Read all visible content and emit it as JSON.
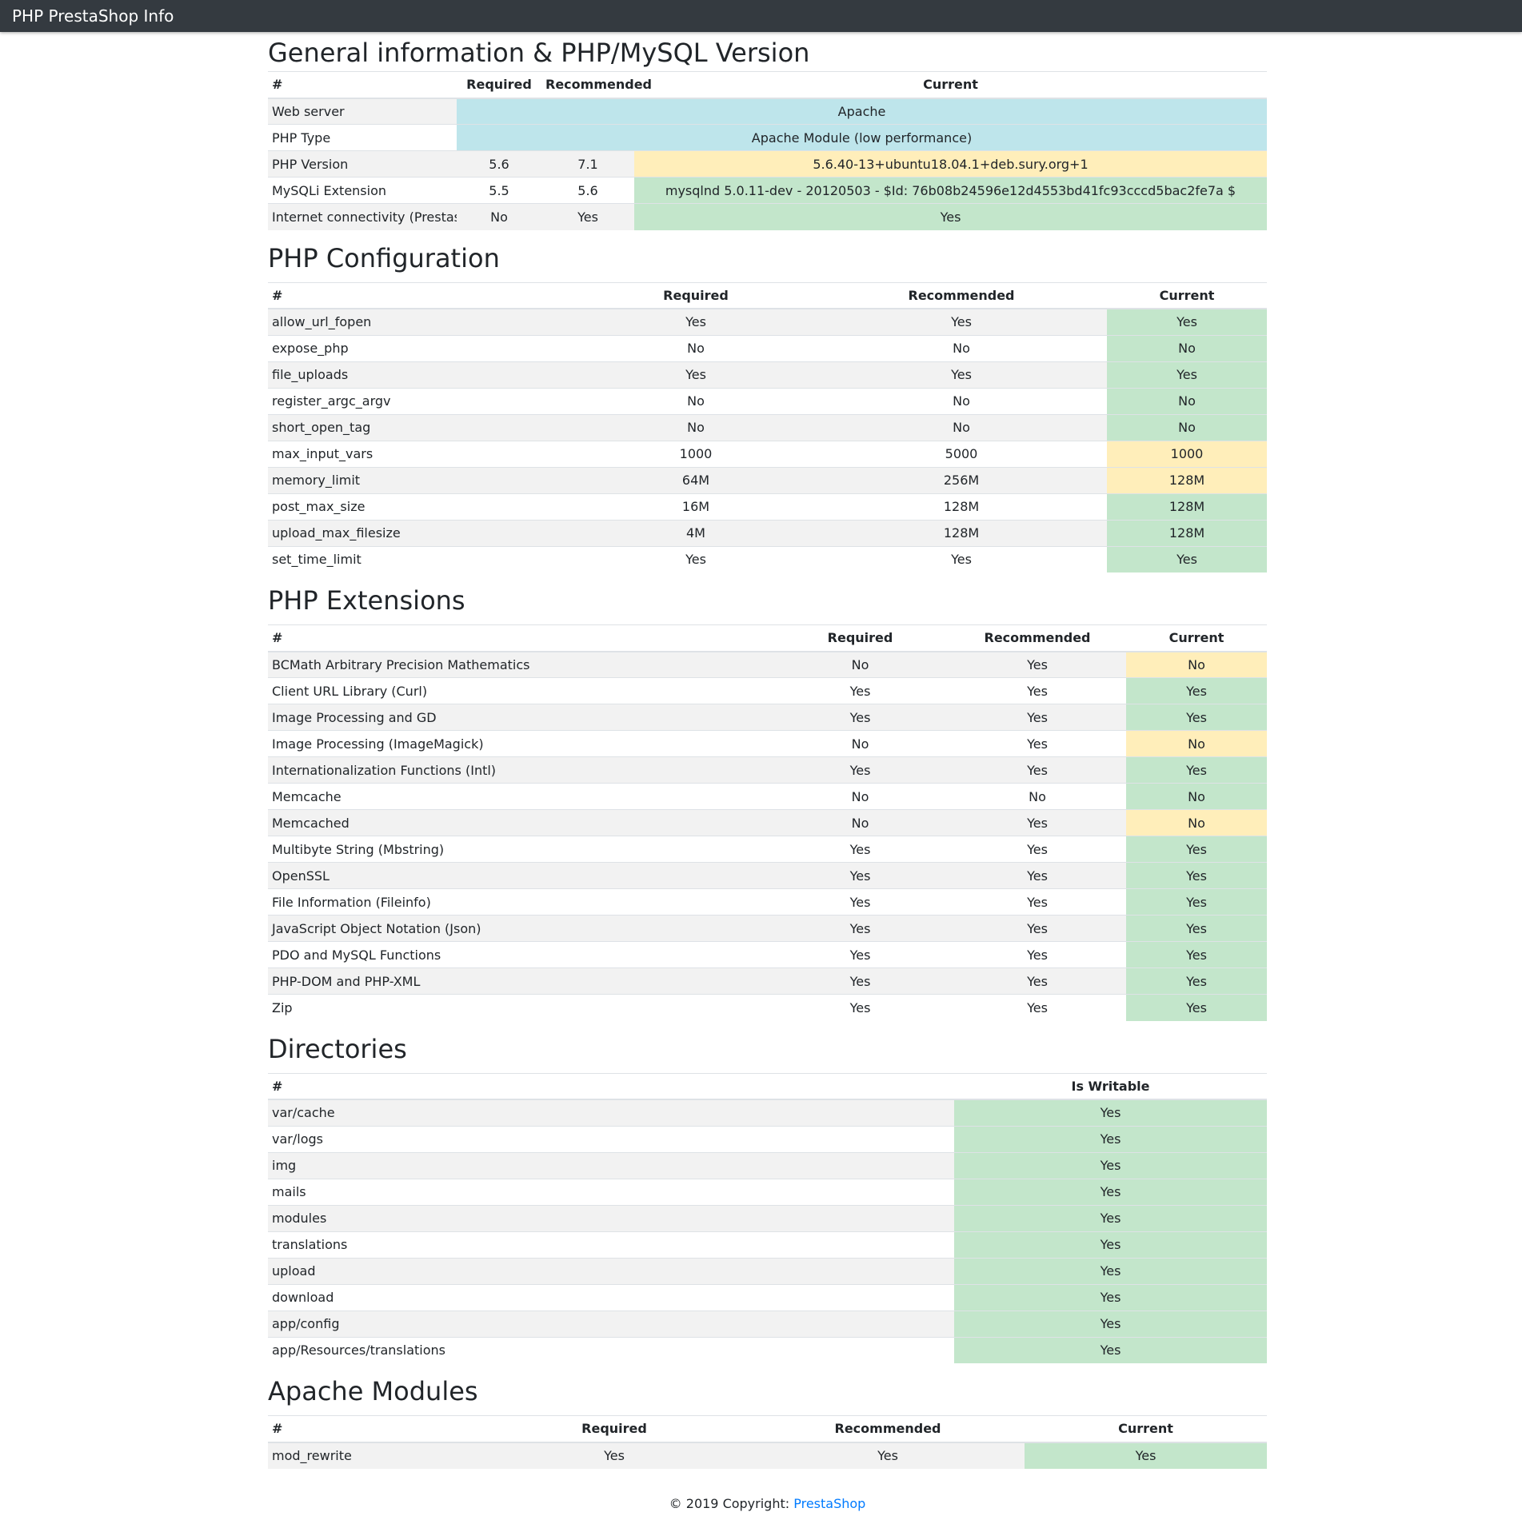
{
  "app_title": "PHP PrestaShop Info",
  "colors": {
    "navbar": "#343a40",
    "info": "#bee5eb",
    "success": "#c3e6cb",
    "warning": "#ffeeba",
    "striped": "#f2f2f2",
    "link": "#007bff"
  },
  "general": {
    "title": "General information & PHP/MySQL Version",
    "headers": [
      "#",
      "Required",
      "Recommended",
      "Current"
    ],
    "web_server": {
      "label": "Web server",
      "current": "Apache"
    },
    "php_type": {
      "label": "PHP Type",
      "current": "Apache Module (low performance)"
    },
    "php_version": {
      "label": "PHP Version",
      "required": "5.6",
      "recommended": "7.1",
      "current": "5.6.40-13+ubuntu18.04.1+deb.sury.org+1"
    },
    "mysqli": {
      "label": "MySQLi Extension",
      "required": "5.5",
      "recommended": "5.6",
      "current": "mysqlnd 5.0.11-dev - 20120503 - $Id: 76b08b24596e12d4553bd41fc93cccd5bac2fe7a $"
    },
    "internet": {
      "label": "Internet connectivity (Prestashop)",
      "required": "No",
      "recommended": "Yes",
      "current": "Yes"
    }
  },
  "config": {
    "title": "PHP Configuration",
    "headers": [
      "#",
      "Required",
      "Recommended",
      "Current"
    ],
    "rows": [
      {
        "name": "allow_url_fopen",
        "required": "Yes",
        "recommended": "Yes",
        "current": "Yes",
        "status": "success"
      },
      {
        "name": "expose_php",
        "required": "No",
        "recommended": "No",
        "current": "No",
        "status": "success"
      },
      {
        "name": "file_uploads",
        "required": "Yes",
        "recommended": "Yes",
        "current": "Yes",
        "status": "success"
      },
      {
        "name": "register_argc_argv",
        "required": "No",
        "recommended": "No",
        "current": "No",
        "status": "success"
      },
      {
        "name": "short_open_tag",
        "required": "No",
        "recommended": "No",
        "current": "No",
        "status": "success"
      },
      {
        "name": "max_input_vars",
        "required": "1000",
        "recommended": "5000",
        "current": "1000",
        "status": "warning"
      },
      {
        "name": "memory_limit",
        "required": "64M",
        "recommended": "256M",
        "current": "128M",
        "status": "warning"
      },
      {
        "name": "post_max_size",
        "required": "16M",
        "recommended": "128M",
        "current": "128M",
        "status": "success"
      },
      {
        "name": "upload_max_filesize",
        "required": "4M",
        "recommended": "128M",
        "current": "128M",
        "status": "success"
      },
      {
        "name": "set_time_limit",
        "required": "Yes",
        "recommended": "Yes",
        "current": "Yes",
        "status": "success"
      }
    ]
  },
  "extensions": {
    "title": "PHP Extensions",
    "headers": [
      "#",
      "Required",
      "Recommended",
      "Current"
    ],
    "rows": [
      {
        "name": "BCMath Arbitrary Precision Mathematics",
        "required": "No",
        "recommended": "Yes",
        "current": "No",
        "status": "warning"
      },
      {
        "name": "Client URL Library (Curl)",
        "required": "Yes",
        "recommended": "Yes",
        "current": "Yes",
        "status": "success"
      },
      {
        "name": "Image Processing and GD",
        "required": "Yes",
        "recommended": "Yes",
        "current": "Yes",
        "status": "success"
      },
      {
        "name": "Image Processing (ImageMagick)",
        "required": "No",
        "recommended": "Yes",
        "current": "No",
        "status": "warning"
      },
      {
        "name": "Internationalization Functions (Intl)",
        "required": "Yes",
        "recommended": "Yes",
        "current": "Yes",
        "status": "success"
      },
      {
        "name": "Memcache",
        "required": "No",
        "recommended": "No",
        "current": "No",
        "status": "success"
      },
      {
        "name": "Memcached",
        "required": "No",
        "recommended": "Yes",
        "current": "No",
        "status": "warning"
      },
      {
        "name": "Multibyte String (Mbstring)",
        "required": "Yes",
        "recommended": "Yes",
        "current": "Yes",
        "status": "success"
      },
      {
        "name": "OpenSSL",
        "required": "Yes",
        "recommended": "Yes",
        "current": "Yes",
        "status": "success"
      },
      {
        "name": "File Information (Fileinfo)",
        "required": "Yes",
        "recommended": "Yes",
        "current": "Yes",
        "status": "success"
      },
      {
        "name": "JavaScript Object Notation (Json)",
        "required": "Yes",
        "recommended": "Yes",
        "current": "Yes",
        "status": "success"
      },
      {
        "name": "PDO and MySQL Functions",
        "required": "Yes",
        "recommended": "Yes",
        "current": "Yes",
        "status": "success"
      },
      {
        "name": "PHP-DOM and PHP-XML",
        "required": "Yes",
        "recommended": "Yes",
        "current": "Yes",
        "status": "success"
      },
      {
        "name": "Zip",
        "required": "Yes",
        "recommended": "Yes",
        "current": "Yes",
        "status": "success"
      }
    ]
  },
  "directories": {
    "title": "Directories",
    "headers": [
      "#",
      "Is Writable"
    ],
    "rows": [
      {
        "name": "var/cache",
        "writable": "Yes",
        "status": "success"
      },
      {
        "name": "var/logs",
        "writable": "Yes",
        "status": "success"
      },
      {
        "name": "img",
        "writable": "Yes",
        "status": "success"
      },
      {
        "name": "mails",
        "writable": "Yes",
        "status": "success"
      },
      {
        "name": "modules",
        "writable": "Yes",
        "status": "success"
      },
      {
        "name": "translations",
        "writable": "Yes",
        "status": "success"
      },
      {
        "name": "upload",
        "writable": "Yes",
        "status": "success"
      },
      {
        "name": "download",
        "writable": "Yes",
        "status": "success"
      },
      {
        "name": "app/config",
        "writable": "Yes",
        "status": "success"
      },
      {
        "name": "app/Resources/translations",
        "writable": "Yes",
        "status": "success"
      }
    ]
  },
  "apache": {
    "title": "Apache Modules",
    "headers": [
      "#",
      "Required",
      "Recommended",
      "Current"
    ],
    "rows": [
      {
        "name": "mod_rewrite",
        "required": "Yes",
        "recommended": "Yes",
        "current": "Yes",
        "status": "success"
      }
    ]
  },
  "footer": {
    "text": "© 2019 Copyright: ",
    "link": "PrestaShop"
  }
}
